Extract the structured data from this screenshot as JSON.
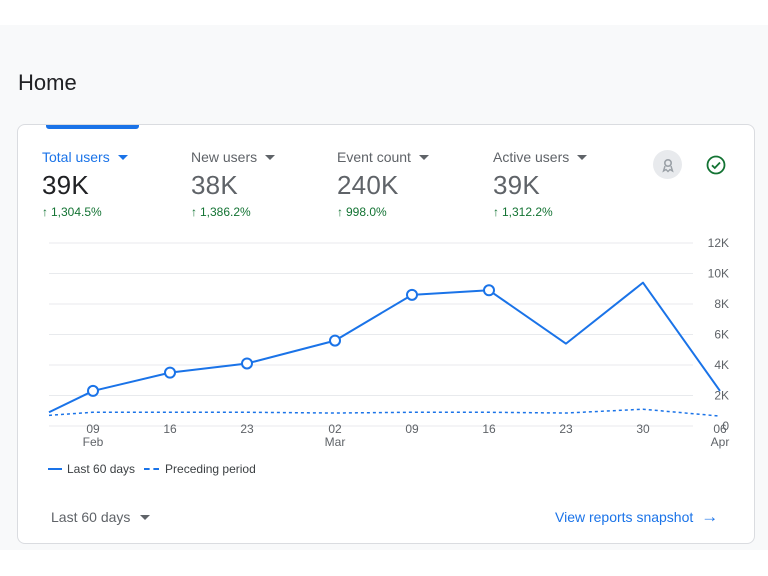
{
  "page": {
    "title": "Home"
  },
  "metrics": [
    {
      "label": "Total users",
      "value": "39K",
      "change": "1,304.5%"
    },
    {
      "label": "New users",
      "value": "38K",
      "change": "1,386.2%"
    },
    {
      "label": "Event count",
      "value": "240K",
      "change": "998.0%"
    },
    {
      "label": "Active users",
      "value": "39K",
      "change": "1,312.2%"
    }
  ],
  "chart_data": {
    "type": "line",
    "y_ticks": [
      "12K",
      "10K",
      "8K",
      "6K",
      "4K",
      "2K",
      "0"
    ],
    "ylim": [
      0,
      12000
    ],
    "x_ticks": [
      {
        "day": "09",
        "month": "Feb"
      },
      {
        "day": "16",
        "month": ""
      },
      {
        "day": "23",
        "month": ""
      },
      {
        "day": "02",
        "month": "Mar"
      },
      {
        "day": "09",
        "month": ""
      },
      {
        "day": "16",
        "month": ""
      },
      {
        "day": "23",
        "month": ""
      },
      {
        "day": "30",
        "month": ""
      },
      {
        "day": "06",
        "month": "Apr"
      }
    ],
    "series": [
      {
        "name": "Last 60 days",
        "style": "solid",
        "color": "#1a73e8",
        "points": [
          {
            "x": "Feb 05",
            "y": 900,
            "marker": false
          },
          {
            "x": "Feb 09",
            "y": 2300,
            "marker": true
          },
          {
            "x": "Feb 16",
            "y": 3500,
            "marker": true
          },
          {
            "x": "Feb 23",
            "y": 4100,
            "marker": true
          },
          {
            "x": "Mar 02",
            "y": 5600,
            "marker": true
          },
          {
            "x": "Mar 09",
            "y": 8600,
            "marker": true
          },
          {
            "x": "Mar 16",
            "y": 8900,
            "marker": true
          },
          {
            "x": "Mar 23",
            "y": 5400,
            "marker": false
          },
          {
            "x": "Mar 30",
            "y": 9400,
            "marker": false
          },
          {
            "x": "Apr 06",
            "y": 2300,
            "marker": false
          }
        ]
      },
      {
        "name": "Preceding period",
        "style": "dashed",
        "color": "#1a73e8",
        "points": [
          {
            "x": "Feb 05",
            "y": 700
          },
          {
            "x": "Feb 09",
            "y": 900
          },
          {
            "x": "Feb 16",
            "y": 900
          },
          {
            "x": "Feb 23",
            "y": 900
          },
          {
            "x": "Mar 02",
            "y": 850
          },
          {
            "x": "Mar 09",
            "y": 900
          },
          {
            "x": "Mar 16",
            "y": 900
          },
          {
            "x": "Mar 23",
            "y": 850
          },
          {
            "x": "Mar 30",
            "y": 1100
          },
          {
            "x": "Apr 06",
            "y": 650
          }
        ]
      }
    ]
  },
  "footer": {
    "range_label": "Last 60 days",
    "link_label": "View reports snapshot",
    "link_icon": "arrow-right-icon"
  },
  "icons": {
    "insights": "insights-icon",
    "status": "check-circle-icon"
  },
  "colors": {
    "accent": "#1a73e8",
    "positive": "#137333"
  }
}
